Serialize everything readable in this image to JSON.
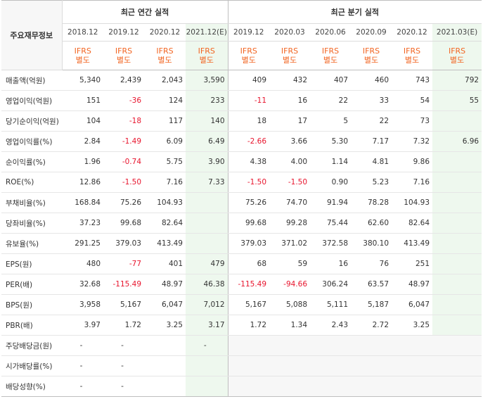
{
  "header": {
    "corner_label": "주요재무정보",
    "annual_title": "최근 연간 실적",
    "quarter_title": "최근 분기 실적"
  },
  "annual_periods": [
    "2018.12",
    "2019.12",
    "2020.12",
    "2021.12(E)"
  ],
  "quarter_periods": [
    "2019.12",
    "2020.03",
    "2020.06",
    "2020.09",
    "2020.12",
    "2021.03(E)"
  ],
  "basis": [
    "IFRS 별도",
    "IFRS 별도",
    "IFRS 별도",
    "IFRS 별도",
    "IFRS 별도",
    "IFRS 별도",
    "IFRS 별도",
    "IFRS 별도",
    "IFRS 별도",
    "IFRS 별도"
  ],
  "basis_lines": [
    "IFRS",
    "별도"
  ],
  "rows": [
    {
      "label": "매출액(억원)",
      "values": [
        "5,340",
        "2,439",
        "2,043",
        "3,590",
        "409",
        "432",
        "407",
        "460",
        "743",
        "792"
      ]
    },
    {
      "label": "영업이익(억원)",
      "values": [
        "151",
        "-36",
        "124",
        "233",
        "-11",
        "16",
        "22",
        "33",
        "54",
        "55"
      ]
    },
    {
      "label": "당기순이익(억원)",
      "values": [
        "104",
        "-18",
        "117",
        "140",
        "18",
        "17",
        "5",
        "22",
        "73",
        ""
      ]
    },
    {
      "label": "영업이익률(%)",
      "values": [
        "2.84",
        "-1.49",
        "6.09",
        "6.49",
        "-2.66",
        "3.66",
        "5.30",
        "7.17",
        "7.32",
        "6.96"
      ]
    },
    {
      "label": "순이익률(%)",
      "values": [
        "1.96",
        "-0.74",
        "5.75",
        "3.90",
        "4.38",
        "4.00",
        "1.14",
        "4.81",
        "9.86",
        ""
      ]
    },
    {
      "label": "ROE(%)",
      "values": [
        "12.86",
        "-1.50",
        "7.16",
        "7.33",
        "-1.50",
        "-1.50",
        "0.90",
        "5.23",
        "7.16",
        ""
      ]
    },
    {
      "label": "부채비율(%)",
      "values": [
        "168.84",
        "75.26",
        "104.93",
        "",
        "75.26",
        "74.70",
        "91.94",
        "78.28",
        "104.93",
        ""
      ]
    },
    {
      "label": "당좌비율(%)",
      "values": [
        "37.23",
        "99.68",
        "82.64",
        "",
        "99.68",
        "99.28",
        "75.44",
        "62.60",
        "82.64",
        ""
      ]
    },
    {
      "label": "유보율(%)",
      "values": [
        "291.25",
        "379.03",
        "413.49",
        "",
        "379.03",
        "371.02",
        "372.58",
        "380.10",
        "413.49",
        ""
      ]
    },
    {
      "label": "EPS(원)",
      "values": [
        "480",
        "-77",
        "401",
        "479",
        "68",
        "59",
        "16",
        "76",
        "251",
        ""
      ]
    },
    {
      "label": "PER(배)",
      "values": [
        "32.68",
        "-115.49",
        "48.97",
        "46.38",
        "-115.49",
        "-94.66",
        "306.24",
        "63.57",
        "48.97",
        ""
      ]
    },
    {
      "label": "BPS(원)",
      "values": [
        "3,958",
        "5,167",
        "6,047",
        "7,012",
        "5,167",
        "5,088",
        "5,111",
        "5,187",
        "6,047",
        ""
      ]
    },
    {
      "label": "PBR(배)",
      "values": [
        "3.97",
        "1.72",
        "3.25",
        "3.17",
        "1.72",
        "1.34",
        "2.43",
        "2.72",
        "3.25",
        ""
      ]
    },
    {
      "label": "주당배당금(원)",
      "values": [
        "-",
        "-",
        "",
        "-",
        "",
        "",
        "",
        "",
        "",
        ""
      ]
    },
    {
      "label": "시가배당률(%)",
      "values": [
        "-",
        "-",
        "",
        "",
        "",
        "",
        "",
        "",
        "",
        ""
      ]
    },
    {
      "label": "배당성향(%)",
      "values": [
        "-",
        "-",
        "",
        "",
        "",
        "",
        "",
        "",
        "",
        ""
      ]
    }
  ],
  "colors": {
    "ifrs": "#f26522",
    "negative": "#e8142d",
    "estimate_bg": "#eef8ee"
  }
}
